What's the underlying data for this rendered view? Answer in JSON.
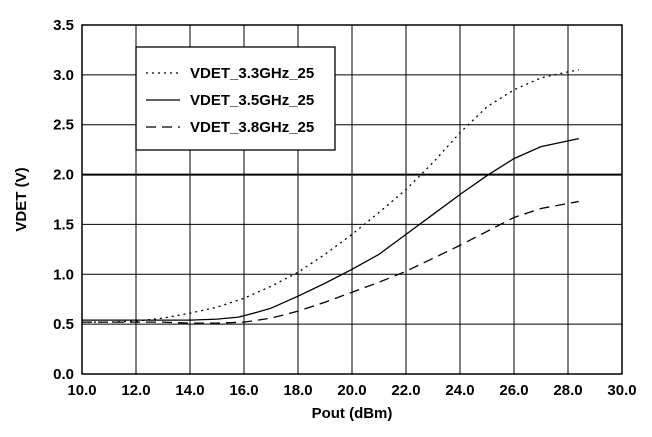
{
  "chart_data": {
    "type": "line",
    "xlabel": "Pout (dBm)",
    "ylabel": "VDET (V)",
    "xlim": [
      10.0,
      30.0
    ],
    "ylim": [
      0.0,
      3.5
    ],
    "xticks": [
      10.0,
      12.0,
      14.0,
      16.0,
      18.0,
      20.0,
      22.0,
      24.0,
      26.0,
      28.0,
      30.0
    ],
    "xtick_labels": [
      "10.0",
      "12.0",
      "14.0",
      "16.0",
      "18.0",
      "20.0",
      "22.0",
      "24.0",
      "26.0",
      "28.0",
      "30.0"
    ],
    "yticks": [
      0.0,
      0.5,
      1.0,
      1.5,
      2.0,
      2.5,
      3.0,
      3.5
    ],
    "ytick_labels": [
      "0.0",
      "0.5",
      "1.0",
      "1.5",
      "2.0",
      "2.5",
      "3.0",
      "3.5"
    ],
    "grid": true,
    "legend_position": "top-left",
    "series": [
      {
        "name": "VDET_3.3GHz_25",
        "line_style": "dotted",
        "x": [
          10.0,
          11.0,
          12.0,
          13.0,
          14.0,
          15.0,
          16.0,
          17.0,
          18.0,
          19.0,
          20.0,
          21.0,
          22.0,
          23.0,
          24.0,
          25.0,
          26.0,
          27.0,
          28.0,
          28.4
        ],
        "y": [
          0.52,
          0.52,
          0.53,
          0.56,
          0.61,
          0.67,
          0.76,
          0.88,
          1.02,
          1.2,
          1.4,
          1.62,
          1.85,
          2.12,
          2.42,
          2.68,
          2.85,
          2.97,
          3.03,
          3.05
        ]
      },
      {
        "name": "VDET_3.5GHz_25",
        "line_style": "solid",
        "x": [
          10.0,
          11.0,
          12.0,
          13.0,
          14.0,
          15.0,
          15.8,
          16.5,
          17.0,
          18.0,
          19.0,
          20.0,
          21.0,
          22.0,
          23.0,
          24.0,
          25.0,
          26.0,
          27.0,
          28.4
        ],
        "y": [
          0.54,
          0.54,
          0.54,
          0.54,
          0.54,
          0.55,
          0.57,
          0.62,
          0.66,
          0.78,
          0.91,
          1.05,
          1.2,
          1.4,
          1.6,
          1.8,
          1.99,
          2.16,
          2.28,
          2.36
        ]
      },
      {
        "name": "VDET_3.8GHz_25",
        "line_style": "dashed",
        "x": [
          10.0,
          11.0,
          12.0,
          13.0,
          14.0,
          15.0,
          16.0,
          17.0,
          18.0,
          19.0,
          20.0,
          21.0,
          22.0,
          23.0,
          24.0,
          25.0,
          26.0,
          27.0,
          28.4
        ],
        "y": [
          0.52,
          0.52,
          0.52,
          0.52,
          0.51,
          0.51,
          0.52,
          0.56,
          0.63,
          0.72,
          0.82,
          0.92,
          1.03,
          1.16,
          1.29,
          1.43,
          1.57,
          1.66,
          1.73
        ]
      }
    ]
  }
}
